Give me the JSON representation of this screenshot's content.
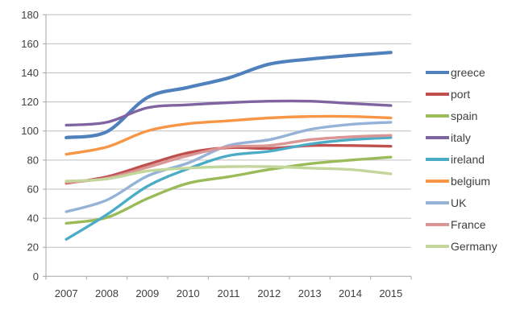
{
  "chart_data": {
    "type": "line",
    "title": "",
    "xlabel": "",
    "ylabel": "",
    "x_categories": [
      "2007",
      "2008",
      "2009",
      "2010",
      "2011",
      "2012",
      "2013",
      "2014",
      "2015"
    ],
    "ylim": [
      0,
      180
    ],
    "ytick_step": 20,
    "ytick_labels": [
      "0",
      "20",
      "40",
      "60",
      "80",
      "100",
      "120",
      "140",
      "160",
      "180"
    ],
    "grid": true,
    "smooth_lines": true,
    "legend_position": "right",
    "colors": {
      "gridline": "#BFBFBF",
      "axis": "#A6A6A6",
      "tick": "#A6A6A6",
      "axis_label": "#3F3F3F",
      "legend_text": "#3F3F3F",
      "background": "#FFFFFF"
    },
    "series": [
      {
        "name": "greece",
        "color": "#4F81BD",
        "width": 4.2,
        "values": [
          95.5,
          99.5,
          123,
          130,
          136.5,
          146,
          149.5,
          152,
          154
        ]
      },
      {
        "name": "port",
        "color": "#C0504D",
        "width": 3.4,
        "values": [
          64,
          68.5,
          77,
          85,
          88.5,
          88,
          90,
          90,
          89.5
        ]
      },
      {
        "name": "spain",
        "color": "#9BBB59",
        "width": 3.4,
        "values": [
          36.5,
          40.5,
          53.5,
          64,
          68.5,
          73.5,
          77.5,
          80,
          82
        ]
      },
      {
        "name": "italy",
        "color": "#8064A2",
        "width": 3.4,
        "values": [
          104,
          106,
          116,
          118,
          119.5,
          120.5,
          120.5,
          119,
          117.5
        ]
      },
      {
        "name": "ireland",
        "color": "#4BACC6",
        "width": 3.4,
        "values": [
          25.5,
          42.5,
          62,
          74,
          83,
          86,
          91,
          94,
          95.5
        ]
      },
      {
        "name": "belgium",
        "color": "#F79646",
        "width": 3.4,
        "values": [
          84,
          89,
          100,
          105,
          107,
          109,
          110,
          110,
          109
        ]
      },
      {
        "name": "UK",
        "color": "#95B3D7",
        "width": 3.4,
        "values": [
          44.5,
          52.5,
          69,
          78,
          90,
          94,
          101,
          104.5,
          106
        ]
      },
      {
        "name": "France",
        "color": "#D99694",
        "width": 3.4,
        "values": [
          64.5,
          67.5,
          75,
          83,
          89,
          90,
          94,
          96,
          97
        ]
      },
      {
        "name": "Germany",
        "color": "#C3D69B",
        "width": 3.4,
        "values": [
          65.5,
          67,
          72.5,
          74.5,
          75.5,
          75.5,
          74.5,
          73.5,
          70.5
        ]
      }
    ]
  }
}
